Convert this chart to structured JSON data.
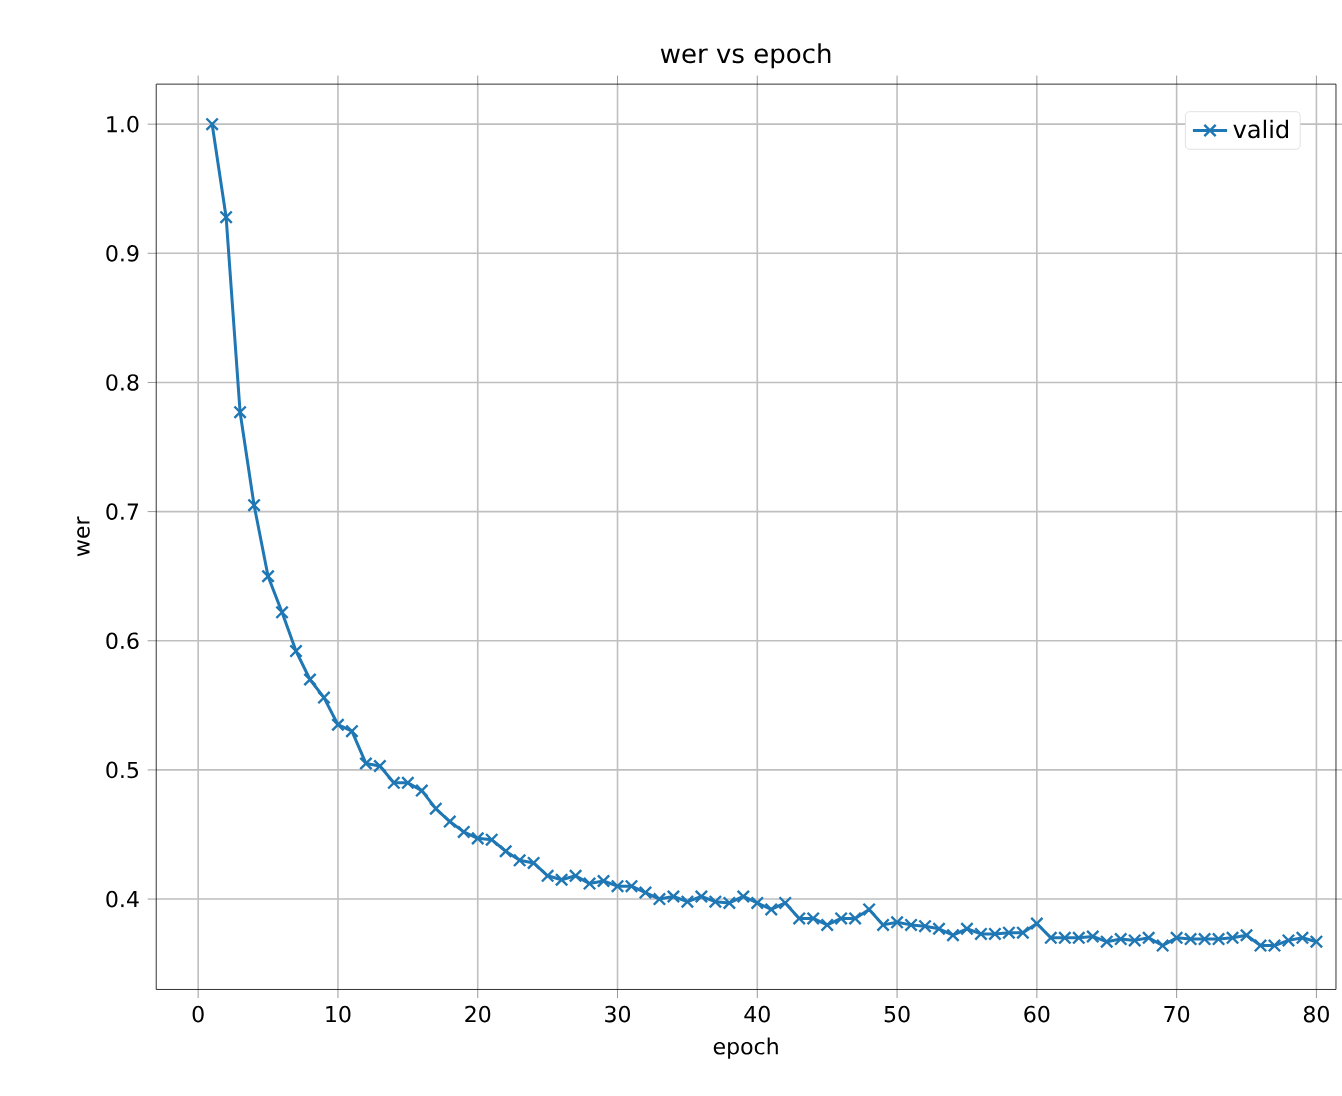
{
  "chart_data": {
    "type": "line",
    "title": "wer vs epoch",
    "xlabel": "epoch",
    "ylabel": "wer",
    "x": [
      1,
      2,
      3,
      4,
      5,
      6,
      7,
      8,
      9,
      10,
      11,
      12,
      13,
      14,
      15,
      16,
      17,
      18,
      19,
      20,
      21,
      22,
      23,
      24,
      25,
      26,
      27,
      28,
      29,
      30,
      31,
      32,
      33,
      34,
      35,
      36,
      37,
      38,
      39,
      40,
      41,
      42,
      43,
      44,
      45,
      46,
      47,
      48,
      49,
      50,
      51,
      52,
      53,
      54,
      55,
      56,
      57,
      58,
      59,
      60,
      61,
      62,
      63,
      64,
      65,
      66,
      67,
      68,
      69,
      70,
      71,
      72,
      73,
      74,
      75,
      76,
      77,
      78,
      79,
      80
    ],
    "series": [
      {
        "name": "valid",
        "color": "#1f77b4",
        "values": [
          1.0,
          0.928,
          0.777,
          0.705,
          0.65,
          0.622,
          0.592,
          0.57,
          0.556,
          0.535,
          0.53,
          0.505,
          0.503,
          0.49,
          0.49,
          0.484,
          0.47,
          0.46,
          0.452,
          0.447,
          0.446,
          0.437,
          0.43,
          0.428,
          0.418,
          0.415,
          0.418,
          0.412,
          0.414,
          0.41,
          0.41,
          0.405,
          0.4,
          0.402,
          0.398,
          0.402,
          0.398,
          0.397,
          0.402,
          0.397,
          0.392,
          0.397,
          0.385,
          0.385,
          0.38,
          0.385,
          0.385,
          0.392,
          0.38,
          0.382,
          0.38,
          0.379,
          0.377,
          0.372,
          0.377,
          0.373,
          0.373,
          0.374,
          0.374,
          0.381,
          0.37,
          0.37,
          0.37,
          0.371,
          0.367,
          0.369,
          0.368,
          0.37,
          0.364,
          0.37,
          0.369,
          0.369,
          0.369,
          0.37,
          0.372,
          0.364,
          0.364,
          0.368,
          0.37,
          0.367
        ]
      }
    ],
    "xlim": [
      -3,
      81.4
    ],
    "ylim": [
      0.33,
      1.031
    ],
    "xticks": [
      0,
      10,
      20,
      30,
      40,
      50,
      60,
      70,
      80
    ],
    "yticks": [
      {
        "value": 0.4,
        "label": "0.4"
      },
      {
        "value": 0.5,
        "label": "0.5"
      },
      {
        "value": 0.6,
        "label": "0.6"
      },
      {
        "value": 0.7,
        "label": "0.7"
      },
      {
        "value": 0.8,
        "label": "0.8"
      },
      {
        "value": 0.9,
        "label": "0.9"
      },
      {
        "value": 1.0,
        "label": "1.0"
      }
    ],
    "grid": true,
    "legend": "top right",
    "marker": "cross",
    "line_style": "solid"
  }
}
